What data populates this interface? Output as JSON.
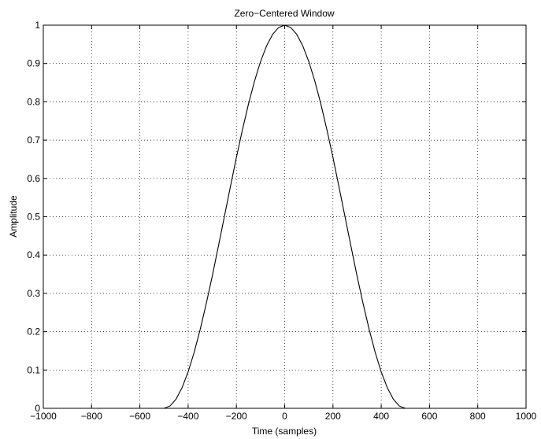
{
  "chart_data": {
    "type": "line",
    "title": "Zero−Centered Window",
    "xlabel": "Time (samples)",
    "ylabel": "Amplitude",
    "xlim": [
      -1000,
      1000
    ],
    "ylim": [
      0,
      1
    ],
    "grid": true,
    "x_ticks": [
      -1000,
      -800,
      -600,
      -400,
      -200,
      0,
      200,
      400,
      600,
      800,
      1000
    ],
    "x_tick_labels": [
      "−1000",
      "−800",
      "−600",
      "−400",
      "−200",
      "0",
      "200",
      "400",
      "600",
      "800",
      "1000"
    ],
    "y_ticks": [
      0,
      0.1,
      0.2,
      0.3,
      0.4,
      0.5,
      0.6,
      0.7,
      0.8,
      0.9,
      1
    ],
    "y_tick_labels": [
      "0",
      "0.1",
      "0.2",
      "0.3",
      "0.4",
      "0.5",
      "0.6",
      "0.7",
      "0.8",
      "0.9",
      "1"
    ],
    "series": [
      {
        "x": [
          -1000,
          -800,
          -600,
          -500,
          -475,
          -450,
          -425,
          -400,
          -375,
          -350,
          -325,
          -300,
          -275,
          -250,
          -225,
          -200,
          -175,
          -150,
          -125,
          -100,
          -75,
          -50,
          -25,
          0,
          25,
          50,
          75,
          100,
          125,
          150,
          175,
          200,
          225,
          250,
          275,
          300,
          325,
          350,
          375,
          400,
          425,
          450,
          475,
          500,
          600,
          800,
          1000
        ],
        "y": [
          0,
          0,
          0,
          0,
          0.006,
          0.024,
          0.054,
          0.095,
          0.146,
          0.206,
          0.273,
          0.345,
          0.422,
          0.5,
          0.578,
          0.655,
          0.727,
          0.794,
          0.854,
          0.905,
          0.946,
          0.976,
          0.994,
          1,
          0.994,
          0.976,
          0.946,
          0.905,
          0.854,
          0.794,
          0.727,
          0.655,
          0.578,
          0.5,
          0.422,
          0.345,
          0.273,
          0.206,
          0.146,
          0.095,
          0.054,
          0.024,
          0.006,
          0,
          0,
          0,
          0
        ]
      }
    ]
  }
}
